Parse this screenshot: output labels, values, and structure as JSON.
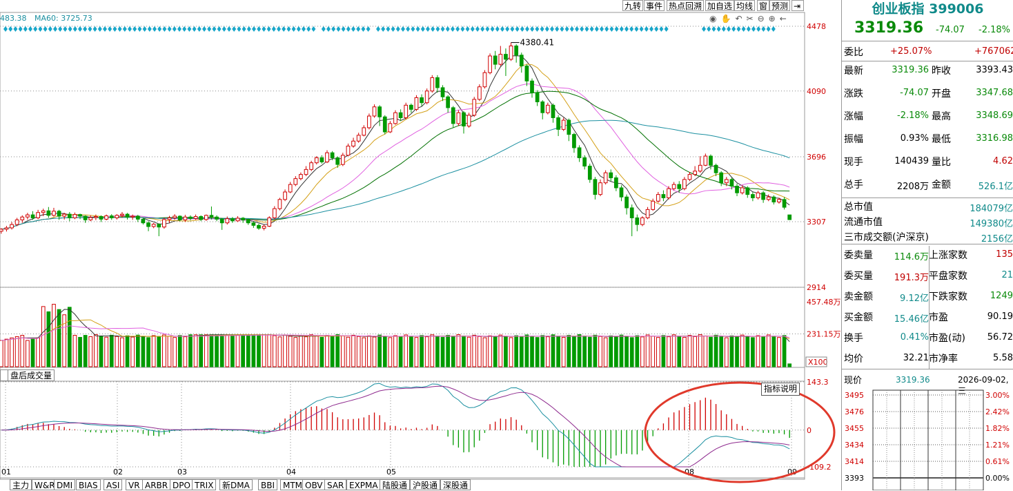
{
  "toolbar": {
    "items": [
      "九转",
      "事件",
      "热点回溯",
      "加自选",
      "均线",
      "窗",
      "预测"
    ]
  },
  "ma_legend": {
    "ma_a": "483.38",
    "ma60_label": "MA60: 3725.73"
  },
  "peak_label": "4380.41",
  "price_axis": [
    "4478",
    "4090",
    "3696",
    "3307",
    "2914"
  ],
  "volume_axis": [
    "457.48万",
    "231.15万",
    "X100"
  ],
  "macd_axis": [
    "143.3",
    "0",
    "-109.2"
  ],
  "indicator_btn": "指标说明",
  "after_hours_tab": "盘后成交量",
  "x_ticks": [
    "01",
    "02",
    "03",
    "04",
    "05",
    "08",
    "09"
  ],
  "bottom_tabs": [
    "主力",
    "W&R",
    "DMI",
    "BIAS",
    "ASI",
    "VR",
    "ARBR",
    "DPO",
    "TRIX",
    "新DMA",
    "BBI",
    "MTM",
    "OBV",
    "SAR",
    "EXPMA",
    "陆股通",
    "沪股通",
    "深股通"
  ],
  "colors": {
    "up": "#d00000",
    "down": "#009a00",
    "ma5": "#333333",
    "ma10": "#d4a017",
    "ma20": "#e060e0",
    "ma30": "#007000",
    "ma60": "#1a8fa0",
    "dif": "#1a8fa0",
    "dea": "#8e2a8e",
    "circle": "#e0392b"
  },
  "quote": {
    "name": "创业板指 399006",
    "price": "3319.36",
    "change": "-74.07",
    "pct": "-2.18%",
    "weibi_label": "委比",
    "weibi_pct": "+25.07%",
    "weibi_val": "+767062",
    "rows": [
      {
        "l1": "最新",
        "v1": "3319.36",
        "l2": "昨收",
        "v2": "3393.43",
        "c1": "green",
        "c2": "black"
      },
      {
        "l1": "涨跌",
        "v1": "-74.07",
        "l2": "开盘",
        "v2": "3347.68",
        "c1": "green",
        "c2": "green"
      },
      {
        "l1": "涨幅",
        "v1": "-2.18%",
        "l2": "最高",
        "v2": "3348.69",
        "c1": "green",
        "c2": "green"
      },
      {
        "l1": "振幅",
        "v1": "0.93%",
        "l2": "最低",
        "v2": "3316.98",
        "c1": "black",
        "c2": "green"
      },
      {
        "l1": "现手",
        "v1": "140439",
        "l2": "量比",
        "v2": "4.62",
        "c1": "black",
        "c2": "red"
      },
      {
        "l1": "总手",
        "v1": "2208万",
        "l2": "金额",
        "v2": "526.1亿",
        "c1": "black",
        "c2": "teal"
      }
    ],
    "mkt": [
      {
        "l": "总市值",
        "v": "184079亿"
      },
      {
        "l": "流通市值",
        "v": "149380亿"
      },
      {
        "l": "三市成交额(沪深京)",
        "v": "2156亿"
      }
    ],
    "book": [
      {
        "l1": "委卖量",
        "v1": "114.6万",
        "l2": "上涨家数",
        "v2": "135",
        "c1": "green",
        "c2": "red"
      },
      {
        "l1": "委买量",
        "v1": "191.3万",
        "l2": "平盘家数",
        "v2": "21",
        "c1": "red",
        "c2": "teal"
      },
      {
        "l1": "卖金额",
        "v1": "9.12亿",
        "l2": "下跌家数",
        "v2": "1249",
        "c1": "teal",
        "c2": "green"
      },
      {
        "l1": "买金额",
        "v1": "15.46亿",
        "l2": "市盈",
        "v2": "90.19",
        "c1": "teal",
        "c2": "black"
      },
      {
        "l1": "换手",
        "v1": "0.41%",
        "l2": "市盈(动)",
        "v2": "56.72",
        "c1": "teal",
        "c2": "black"
      },
      {
        "l1": "均价",
        "v1": "32.21",
        "l2": "市净率",
        "v2": "5.58",
        "c1": "black",
        "c2": "black"
      }
    ],
    "mini_title_label": "现价",
    "mini_title_price": "3319.36",
    "mini_title_date": "2026-09-02,三",
    "mini_left": [
      "3495",
      "3476",
      "3455",
      "3434",
      "3414",
      "3393"
    ],
    "mini_right": [
      "3.00%",
      "2.42%",
      "1.82%",
      "1.21%",
      "0.61%",
      "0.00%"
    ]
  },
  "chart_data": {
    "type": "candlestick",
    "title": "创业板指 399006",
    "price_ylim": [
      2914,
      4478
    ],
    "price_ticks": [
      4478,
      4090,
      3696,
      3307,
      2914
    ],
    "peak": 4380.41,
    "months": [
      "01",
      "02",
      "03",
      "04",
      "05",
      "08",
      "09"
    ],
    "candles": [
      [
        3250,
        3262,
        3235,
        3268
      ],
      [
        3262,
        3270,
        3248,
        3282
      ],
      [
        3270,
        3290,
        3260,
        3305
      ],
      [
        3290,
        3318,
        3280,
        3330
      ],
      [
        3318,
        3335,
        3300,
        3345
      ],
      [
        3335,
        3348,
        3320,
        3360
      ],
      [
        3348,
        3330,
        3318,
        3370
      ],
      [
        3330,
        3362,
        3322,
        3378
      ],
      [
        3362,
        3372,
        3340,
        3385
      ],
      [
        3372,
        3345,
        3330,
        3395
      ],
      [
        3345,
        3370,
        3338,
        3390
      ],
      [
        3370,
        3340,
        3318,
        3378
      ],
      [
        3340,
        3352,
        3320,
        3360
      ],
      [
        3352,
        3330,
        3310,
        3365
      ],
      [
        3330,
        3350,
        3322,
        3362
      ],
      [
        3350,
        3340,
        3322,
        3355
      ],
      [
        3340,
        3318,
        3300,
        3345
      ],
      [
        3318,
        3332,
        3310,
        3345
      ],
      [
        3332,
        3338,
        3316,
        3350
      ],
      [
        3338,
        3322,
        3305,
        3345
      ],
      [
        3322,
        3342,
        3315,
        3350
      ],
      [
        3342,
        3330,
        3318,
        3352
      ],
      [
        3330,
        3345,
        3320,
        3352
      ],
      [
        3345,
        3352,
        3330,
        3365
      ],
      [
        3352,
        3335,
        3320,
        3360
      ],
      [
        3335,
        3340,
        3318,
        3350
      ],
      [
        3340,
        3322,
        3305,
        3348
      ],
      [
        3322,
        3300,
        3290,
        3328
      ],
      [
        3300,
        3278,
        3250,
        3310
      ],
      [
        3278,
        3292,
        3268,
        3300
      ],
      [
        3292,
        3275,
        3220,
        3296
      ],
      [
        3275,
        3320,
        3265,
        3330
      ],
      [
        3320,
        3330,
        3300,
        3342
      ],
      [
        3330,
        3340,
        3318,
        3352
      ],
      [
        3340,
        3318,
        3310,
        3345
      ],
      [
        3318,
        3335,
        3305,
        3348
      ],
      [
        3335,
        3326,
        3315,
        3345
      ],
      [
        3326,
        3338,
        3318,
        3350
      ],
      [
        3338,
        3320,
        3310,
        3345
      ],
      [
        3320,
        3345,
        3312,
        3350
      ],
      [
        3345,
        3335,
        3320,
        3398
      ],
      [
        3335,
        3322,
        3310,
        3345
      ],
      [
        3322,
        3300,
        3258,
        3330
      ],
      [
        3300,
        3325,
        3290,
        3338
      ],
      [
        3325,
        3312,
        3300,
        3335
      ],
      [
        3312,
        3328,
        3305,
        3340
      ],
      [
        3328,
        3318,
        3300,
        3335
      ],
      [
        3318,
        3300,
        3288,
        3325
      ],
      [
        3300,
        3285,
        3270,
        3308
      ],
      [
        3285,
        3268,
        3258,
        3295
      ],
      [
        3268,
        3280,
        3255,
        3290
      ],
      [
        3280,
        3330,
        3275,
        3340
      ],
      [
        3330,
        3385,
        3322,
        3400
      ],
      [
        3385,
        3440,
        3375,
        3450
      ],
      [
        3440,
        3485,
        3430,
        3500
      ],
      [
        3485,
        3530,
        3478,
        3545
      ],
      [
        3530,
        3565,
        3520,
        3580
      ],
      [
        3565,
        3590,
        3555,
        3602
      ],
      [
        3590,
        3620,
        3580,
        3640
      ],
      [
        3620,
        3660,
        3610,
        3672
      ],
      [
        3660,
        3690,
        3650,
        3700
      ],
      [
        3690,
        3665,
        3655,
        3705
      ],
      [
        3665,
        3720,
        3658,
        3735
      ],
      [
        3720,
        3690,
        3675,
        3730
      ],
      [
        3690,
        3650,
        3630,
        3698
      ],
      [
        3650,
        3705,
        3640,
        3720
      ],
      [
        3705,
        3760,
        3700,
        3775
      ],
      [
        3760,
        3790,
        3750,
        3810
      ],
      [
        3790,
        3825,
        3780,
        3840
      ],
      [
        3825,
        3870,
        3818,
        3885
      ],
      [
        3870,
        3940,
        3860,
        3955
      ],
      [
        3940,
        3995,
        3930,
        4010
      ],
      [
        3995,
        3935,
        3880,
        4005
      ],
      [
        3935,
        3845,
        3830,
        3945
      ],
      [
        3845,
        3895,
        3838,
        3910
      ],
      [
        3895,
        3960,
        3888,
        3975
      ],
      [
        3960,
        3930,
        3910,
        3980
      ],
      [
        3930,
        4005,
        3920,
        4020
      ],
      [
        4005,
        3980,
        3960,
        4015
      ],
      [
        3980,
        4050,
        3970,
        4065
      ],
      [
        4050,
        4020,
        4000,
        4070
      ],
      [
        4020,
        4090,
        4010,
        4105
      ],
      [
        4090,
        4170,
        4080,
        4185
      ],
      [
        4170,
        4110,
        4080,
        4185
      ],
      [
        4110,
        4055,
        4030,
        4125
      ],
      [
        4055,
        3990,
        3960,
        4065
      ],
      [
        3990,
        3895,
        3870,
        4000
      ],
      [
        3895,
        3960,
        3880,
        3975
      ],
      [
        3960,
        3880,
        3835,
        3970
      ],
      [
        3880,
        3945,
        3870,
        3960
      ],
      [
        3945,
        4040,
        3935,
        4055
      ],
      [
        4040,
        4115,
        4030,
        4130
      ],
      [
        4115,
        4200,
        4105,
        4215
      ],
      [
        4200,
        4300,
        4190,
        4315
      ],
      [
        4300,
        4250,
        4220,
        4330
      ],
      [
        4250,
        4310,
        4240,
        4360
      ],
      [
        4310,
        4280,
        4180,
        4345
      ],
      [
        4280,
        4360,
        4270,
        4380.41
      ],
      [
        4360,
        4305,
        4260,
        4370
      ],
      [
        4305,
        4240,
        4200,
        4320
      ],
      [
        4240,
        4150,
        4120,
        4250
      ],
      [
        4150,
        4080,
        4050,
        4165
      ],
      [
        4080,
        4025,
        4000,
        4095
      ],
      [
        4025,
        3960,
        3920,
        4035
      ],
      [
        3960,
        4005,
        3950,
        4020
      ],
      [
        4005,
        3930,
        3900,
        4015
      ],
      [
        3930,
        3860,
        3820,
        3945
      ],
      [
        3860,
        3915,
        3850,
        3930
      ],
      [
        3915,
        3830,
        3790,
        3925
      ],
      [
        3830,
        3750,
        3720,
        3840
      ],
      [
        3750,
        3690,
        3665,
        3765
      ],
      [
        3690,
        3640,
        3620,
        3705
      ],
      [
        3640,
        3560,
        3540,
        3655
      ],
      [
        3560,
        3470,
        3440,
        3575
      ],
      [
        3470,
        3540,
        3460,
        3560
      ],
      [
        3540,
        3600,
        3530,
        3615
      ],
      [
        3600,
        3570,
        3550,
        3620
      ],
      [
        3570,
        3510,
        3490,
        3585
      ],
      [
        3510,
        3455,
        3430,
        3525
      ],
      [
        3455,
        3390,
        3350,
        3470
      ],
      [
        3390,
        3330,
        3220,
        3410
      ],
      [
        3330,
        3290,
        3250,
        3350
      ],
      [
        3290,
        3330,
        3280,
        3340
      ],
      [
        3330,
        3380,
        3322,
        3395
      ],
      [
        3380,
        3430,
        3372,
        3445
      ],
      [
        3430,
        3470,
        3420,
        3485
      ],
      [
        3470,
        3450,
        3430,
        3495
      ],
      [
        3450,
        3505,
        3440,
        3520
      ],
      [
        3505,
        3530,
        3495,
        3545
      ],
      [
        3530,
        3505,
        3480,
        3550
      ],
      [
        3505,
        3560,
        3495,
        3575
      ],
      [
        3560,
        3590,
        3550,
        3605
      ],
      [
        3590,
        3610,
        3580,
        3640
      ],
      [
        3610,
        3645,
        3600,
        3700
      ],
      [
        3645,
        3700,
        3640,
        3715
      ],
      [
        3700,
        3645,
        3620,
        3710
      ],
      [
        3645,
        3600,
        3580,
        3655
      ],
      [
        3600,
        3540,
        3520,
        3610
      ],
      [
        3540,
        3560,
        3520,
        3575
      ],
      [
        3560,
        3520,
        3500,
        3570
      ],
      [
        3520,
        3480,
        3460,
        3535
      ],
      [
        3480,
        3510,
        3470,
        3525
      ],
      [
        3510,
        3470,
        3450,
        3520
      ],
      [
        3470,
        3450,
        3430,
        3485
      ],
      [
        3450,
        3480,
        3440,
        3492
      ],
      [
        3480,
        3440,
        3420,
        3490
      ],
      [
        3440,
        3455,
        3430,
        3470
      ],
      [
        3455,
        3425,
        3410,
        3465
      ],
      [
        3425,
        3440,
        3415,
        3450
      ],
      [
        3440,
        3393.43,
        3380,
        3455
      ],
      [
        3347.68,
        3319.36,
        3316.98,
        3348.69
      ]
    ],
    "volume_ylim": [
      0,
      457.48
    ],
    "volume_ticks": [
      457.48,
      231.15
    ],
    "volume_unit": "X100",
    "macd_ylim": [
      -109.2,
      143.3
    ],
    "macd_ticks": [
      143.3,
      0,
      -109.2
    ]
  }
}
